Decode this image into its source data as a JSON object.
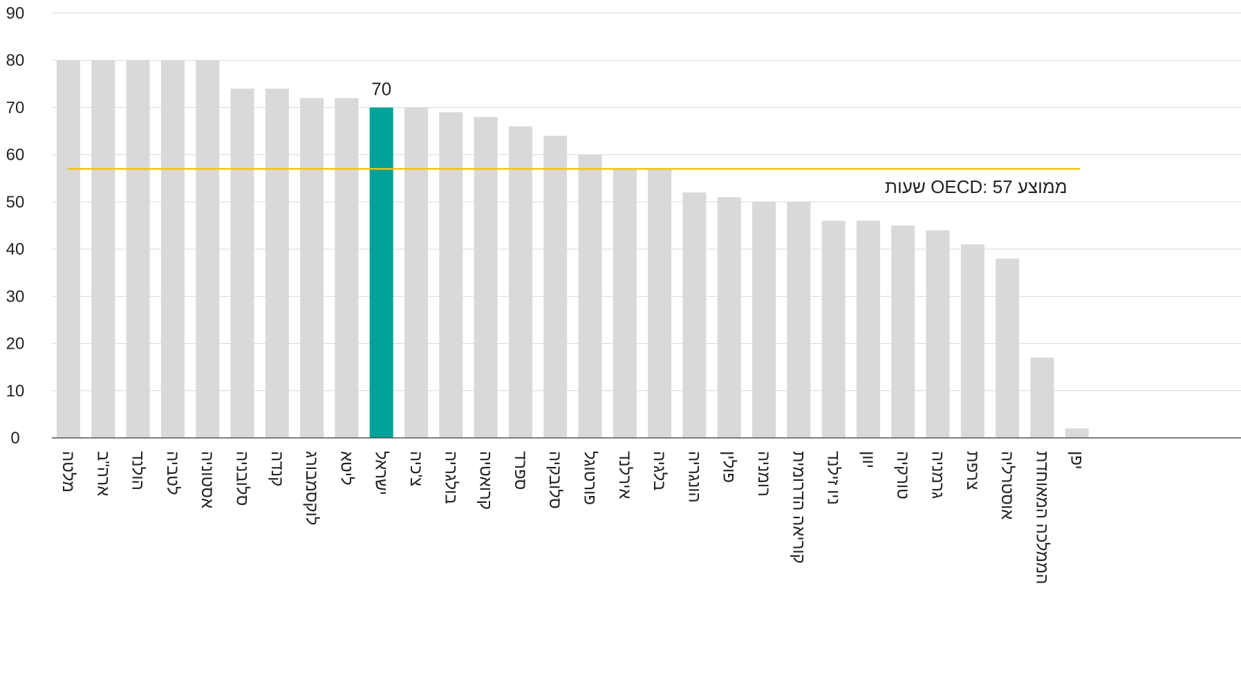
{
  "chart_data": {
    "type": "bar",
    "categories": [
      "מלטה",
      "ארה\"ב",
      "הולנד",
      "לטביה",
      "אסטוניה",
      "סלובניה",
      "קנדה",
      "לוקסמבורג",
      "ליטא",
      "ישראל",
      "צ'כיה",
      "בולגריה",
      "קרואטיה",
      "ספרד",
      "סלובקיה",
      "פורטוגל",
      "אירלנד",
      "בלגיה",
      "הונגריה",
      "פולין",
      "רומניה",
      "קוריאה הדרומית",
      "ניו זילנד",
      "יוון",
      "טורקיה",
      "גרמניה",
      "צרפת",
      "אוסטרליה",
      "הממלכה המאוחדת",
      "יפן"
    ],
    "values": [
      80,
      80,
      80,
      80,
      80,
      74,
      74,
      72,
      72,
      70,
      70,
      69,
      68,
      66,
      64,
      60,
      57,
      57,
      52,
      51,
      50,
      50,
      46,
      46,
      45,
      44,
      41,
      38,
      17,
      2
    ],
    "ylim": [
      0,
      90
    ],
    "yticks": [
      0,
      10,
      20,
      30,
      40,
      50,
      60,
      70,
      80,
      90
    ],
    "highlight": {
      "category": "ישראל",
      "label": "70"
    },
    "reference_line": {
      "value": 57,
      "label": "ממוצע OECD: 57 שעות"
    },
    "grid": true,
    "legend": "none",
    "colors": {
      "bar": "#d9d9d9",
      "highlight": "#00a29a",
      "reference": "#f2c318",
      "grid": "#d9d9d9",
      "axis": "#555555"
    }
  }
}
